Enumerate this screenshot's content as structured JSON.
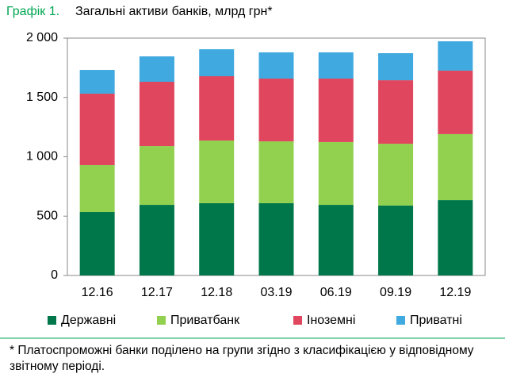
{
  "chart_data": {
    "type": "stacked_bar",
    "title_label": "Графік 1.",
    "title": "Загальні активи банків, млрд грн*",
    "categories": [
      "12.16",
      "12.17",
      "12.18",
      "03.19",
      "06.19",
      "09.19",
      "12.19"
    ],
    "series": [
      {
        "name": "Державні",
        "color": "#00774a",
        "values": [
          535,
          595,
          609,
          609,
          595,
          589,
          635
        ]
      },
      {
        "name": "Приватбанк",
        "color": "#92d050",
        "values": [
          395,
          495,
          528,
          521,
          529,
          521,
          556
        ]
      },
      {
        "name": "Іноземні",
        "color": "#e0475e",
        "values": [
          602,
          542,
          542,
          529,
          535,
          535,
          535
        ]
      },
      {
        "name": "Приватні",
        "color": "#3fa9e0",
        "values": [
          200,
          214,
          227,
          221,
          221,
          228,
          247
        ]
      }
    ],
    "ylim": [
      0,
      2000
    ],
    "yticks": [
      0,
      500,
      {
        "value": 1000,
        "label": "1 000"
      },
      {
        "value": 1500,
        "label": "1 500"
      },
      {
        "value": 2000,
        "label": "2 000"
      }
    ],
    "footnote": "* Платоспроможні банки поділено на групи згідно з класифікацією у відповідному звітному періоді."
  }
}
